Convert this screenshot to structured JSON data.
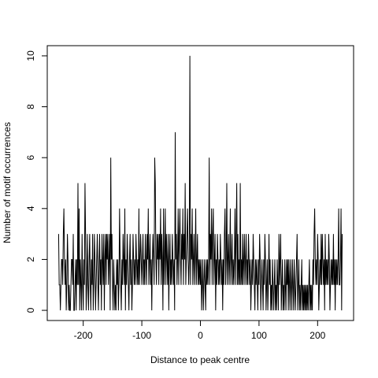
{
  "chart_data": {
    "type": "line",
    "x_label": "Distance to peak centre",
    "y_label": "Number of motif occurrences",
    "color": "#000000",
    "xlim": [
      -261.4,
      261.4
    ],
    "xticks": [
      -200,
      -100,
      0,
      100,
      200
    ],
    "ylim": [
      -0.4,
      10.4
    ],
    "yticks": [
      0,
      2,
      4,
      6,
      8,
      10
    ],
    "x": [
      -242,
      -241,
      -240,
      -239,
      -238,
      -237,
      -236,
      -235,
      -234,
      -233,
      -232,
      -231,
      -230,
      -229,
      -228,
      -227,
      -226,
      -225,
      -224,
      -223,
      -222,
      -221,
      -220,
      -219,
      -218,
      -217,
      -216,
      -215,
      -214,
      -213,
      -212,
      -211,
      -210,
      -209,
      -208,
      -207,
      -206,
      -205,
      -204,
      -203,
      -202,
      -201,
      -200,
      -199,
      -198,
      -197,
      -196,
      -195,
      -194,
      -193,
      -192,
      -191,
      -190,
      -189,
      -188,
      -187,
      -186,
      -185,
      -184,
      -183,
      -182,
      -181,
      -180,
      -179,
      -178,
      -177,
      -176,
      -175,
      -174,
      -173,
      -172,
      -171,
      -170,
      -169,
      -168,
      -167,
      -166,
      -165,
      -164,
      -163,
      -162,
      -161,
      -160,
      -159,
      -158,
      -157,
      -156,
      -155,
      -154,
      -153,
      -152,
      -151,
      -150,
      -149,
      -148,
      -147,
      -146,
      -145,
      -144,
      -143,
      -142,
      -141,
      -140,
      -139,
      -138,
      -137,
      -136,
      -135,
      -134,
      -133,
      -132,
      -131,
      -130,
      -129,
      -128,
      -127,
      -126,
      -125,
      -124,
      -123,
      -122,
      -121,
      -120,
      -119,
      -118,
      -117,
      -116,
      -115,
      -114,
      -113,
      -112,
      -111,
      -110,
      -109,
      -108,
      -107,
      -106,
      -105,
      -104,
      -103,
      -102,
      -101,
      -100,
      -99,
      -98,
      -97,
      -96,
      -95,
      -94,
      -93,
      -92,
      -91,
      -90,
      -89,
      -88,
      -87,
      -86,
      -85,
      -84,
      -83,
      -82,
      -81,
      -80,
      -79,
      -78,
      -77,
      -76,
      -75,
      -74,
      -73,
      -72,
      -71,
      -70,
      -69,
      -68,
      -67,
      -66,
      -65,
      -64,
      -63,
      -62,
      -61,
      -60,
      -59,
      -58,
      -57,
      -56,
      -55,
      -54,
      -53,
      -52,
      -51,
      -50,
      -49,
      -48,
      -47,
      -46,
      -45,
      -44,
      -43,
      -42,
      -41,
      -40,
      -39,
      -38,
      -37,
      -36,
      -35,
      -34,
      -33,
      -32,
      -31,
      -30,
      -29,
      -28,
      -27,
      -26,
      -25,
      -24,
      -23,
      -22,
      -21,
      -20,
      -19,
      -18,
      -17,
      -16,
      -15,
      -14,
      -13,
      -12,
      -11,
      -10,
      -9,
      -8,
      -7,
      -6,
      -5,
      -4,
      -3,
      -2,
      -1,
      0,
      1,
      2,
      3,
      4,
      5,
      6,
      7,
      8,
      9,
      10,
      11,
      12,
      13,
      14,
      15,
      16,
      17,
      18,
      19,
      20,
      21,
      22,
      23,
      24,
      25,
      26,
      27,
      28,
      29,
      30,
      31,
      32,
      33,
      34,
      35,
      36,
      37,
      38,
      39,
      40,
      41,
      42,
      43,
      44,
      45,
      46,
      47,
      48,
      49,
      50,
      51,
      52,
      53,
      54,
      55,
      56,
      57,
      58,
      59,
      60,
      61,
      62,
      63,
      64,
      65,
      66,
      67,
      68,
      69,
      70,
      71,
      72,
      73,
      74,
      75,
      76,
      77,
      78,
      79,
      80,
      81,
      82,
      83,
      84,
      85,
      86,
      87,
      88,
      89,
      90,
      91,
      92,
      93,
      94,
      95,
      96,
      97,
      98,
      99,
      100,
      101,
      102,
      103,
      104,
      105,
      106,
      107,
      108,
      109,
      110,
      111,
      112,
      113,
      114,
      115,
      116,
      117,
      118,
      119,
      120,
      121,
      122,
      123,
      124,
      125,
      126,
      127,
      128,
      129,
      130,
      131,
      132,
      133,
      134,
      135,
      136,
      137,
      138,
      139,
      140,
      141,
      142,
      143,
      144,
      145,
      146,
      147,
      148,
      149,
      150,
      151,
      152,
      153,
      154,
      155,
      156,
      157,
      158,
      159,
      160,
      161,
      162,
      163,
      164,
      165,
      166,
      167,
      168,
      169,
      170,
      171,
      172,
      173,
      174,
      175,
      176,
      177,
      178,
      179,
      180,
      181,
      182,
      183,
      184,
      185,
      186,
      187,
      188,
      189,
      190,
      191,
      192,
      193,
      194,
      195,
      196,
      197,
      198,
      199,
      200,
      201,
      202,
      203,
      204,
      205,
      206,
      207,
      208,
      209,
      210,
      211,
      212,
      213,
      214,
      215,
      216,
      217,
      218,
      219,
      220,
      221,
      222,
      223,
      224,
      225,
      226,
      227,
      228,
      229,
      230,
      231,
      232,
      233,
      234,
      235,
      236,
      237,
      238,
      239,
      240,
      241,
      242
    ],
    "values": [
      3,
      1,
      1,
      0,
      1,
      2,
      2,
      1,
      3,
      4,
      2,
      1,
      2,
      0,
      1,
      3,
      2,
      0,
      1,
      0,
      0,
      1,
      2,
      2,
      1,
      3,
      0,
      0,
      1,
      2,
      0,
      2,
      1,
      5,
      1,
      4,
      0,
      2,
      1,
      0,
      3,
      1,
      0,
      2,
      1,
      5,
      3,
      0,
      1,
      3,
      1,
      0,
      2,
      3,
      1,
      0,
      2,
      1,
      3,
      0,
      1,
      3,
      2,
      0,
      1,
      2,
      3,
      1,
      0,
      2,
      3,
      1,
      2,
      0,
      3,
      2,
      1,
      3,
      0,
      2,
      3,
      1,
      3,
      2,
      3,
      1,
      2,
      3,
      0,
      6,
      2,
      3,
      1,
      0,
      2,
      1,
      0,
      1,
      0,
      2,
      1,
      2,
      0,
      1,
      4,
      2,
      1,
      0,
      2,
      1,
      3,
      2,
      1,
      4,
      0,
      2,
      1,
      3,
      2,
      1,
      0,
      2,
      3,
      1,
      2,
      0,
      1,
      3,
      2,
      1,
      2,
      1,
      3,
      2,
      1,
      2,
      1,
      4,
      1,
      2,
      3,
      2,
      1,
      2,
      3,
      1,
      2,
      1,
      3,
      2,
      1,
      3,
      2,
      4,
      1,
      2,
      3,
      1,
      2,
      0,
      2,
      3,
      2,
      1,
      6,
      5,
      2,
      1,
      3,
      2,
      3,
      1,
      3,
      2,
      4,
      1,
      3,
      2,
      0,
      4,
      1,
      2,
      4,
      1,
      3,
      2,
      1,
      3,
      0,
      2,
      3,
      1,
      2,
      1,
      3,
      2,
      1,
      2,
      0,
      7,
      2,
      3,
      1,
      2,
      4,
      1,
      3,
      4,
      2,
      1,
      3,
      2,
      4,
      1,
      3,
      2,
      5,
      1,
      2,
      3,
      4,
      2,
      1,
      2,
      10,
      1,
      3,
      2,
      4,
      1,
      2,
      3,
      1,
      2,
      4,
      1,
      2,
      3,
      1,
      2,
      1,
      2,
      1,
      2,
      0,
      1,
      2,
      0,
      1,
      2,
      1,
      0,
      2,
      1,
      2,
      1,
      2,
      6,
      1,
      3,
      2,
      4,
      1,
      3,
      4,
      1,
      2,
      3,
      0,
      2,
      1,
      3,
      2,
      1,
      2,
      1,
      3,
      2,
      1,
      2,
      0,
      2,
      1,
      3,
      4,
      1,
      2,
      5,
      1,
      2,
      3,
      1,
      2,
      4,
      1,
      2,
      3,
      1,
      2,
      1,
      2,
      4,
      1,
      3,
      5,
      1,
      3,
      1,
      2,
      1,
      5,
      1,
      2,
      1,
      3,
      1,
      2,
      3,
      1,
      2,
      3,
      1,
      2,
      1,
      3,
      2,
      1,
      2,
      0,
      1,
      2,
      1,
      3,
      2,
      1,
      0,
      2,
      1,
      2,
      1,
      0,
      2,
      1,
      3,
      2,
      0,
      1,
      2,
      1,
      0,
      2,
      1,
      3,
      2,
      0,
      1,
      2,
      0,
      1,
      3,
      1,
      2,
      0,
      1,
      0,
      2,
      1,
      0,
      1,
      2,
      0,
      1,
      0,
      2,
      1,
      0,
      3,
      1,
      2,
      3,
      0,
      1,
      2,
      0,
      1,
      0,
      2,
      1,
      0,
      2,
      1,
      2,
      0,
      2,
      1,
      0,
      2,
      1,
      0,
      2,
      1,
      0,
      2,
      1,
      0,
      1,
      2,
      3,
      0,
      1,
      2,
      0,
      1,
      0,
      1,
      2,
      0,
      1,
      0,
      1,
      0,
      1,
      0,
      1,
      0,
      1,
      0,
      1,
      2,
      0,
      1,
      0,
      1,
      0,
      2,
      1,
      3,
      4,
      2,
      1,
      2,
      1,
      3,
      2,
      0,
      1,
      2,
      1,
      3,
      1,
      3,
      2,
      1,
      2,
      0,
      3,
      1,
      2,
      1,
      2,
      1,
      3,
      2,
      0,
      1,
      2,
      1,
      2,
      1,
      3,
      1,
      2,
      0,
      2,
      1,
      2,
      1,
      2,
      4,
      1,
      1,
      2,
      4,
      0,
      3
    ]
  }
}
